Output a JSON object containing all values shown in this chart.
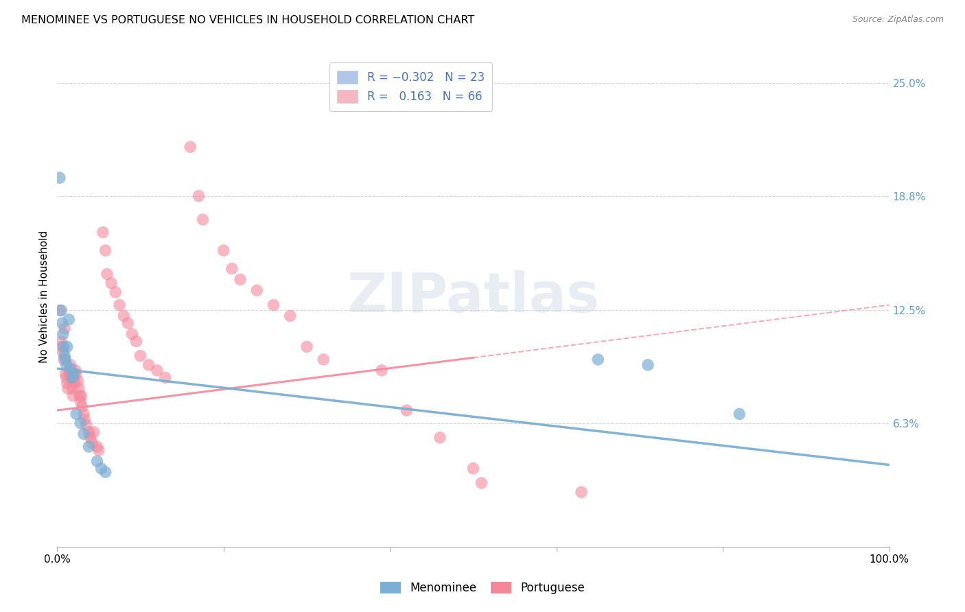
{
  "title": "MENOMINEE VS PORTUGUESE NO VEHICLES IN HOUSEHOLD CORRELATION CHART",
  "source": "Source: ZipAtlas.com",
  "ylabel": "No Vehicles in Household",
  "yticks": [
    "6.3%",
    "12.5%",
    "18.8%",
    "25.0%"
  ],
  "ytick_vals": [
    0.063,
    0.125,
    0.188,
    0.25
  ],
  "xlim": [
    0.0,
    1.0
  ],
  "ylim": [
    -0.005,
    0.27
  ],
  "menominee_color": "#7bafd4",
  "portuguese_color": "#f4879a",
  "menominee_edge": "#5a9bc4",
  "portuguese_edge": "#e8607a",
  "watermark_text": "ZIPatlas",
  "legend_patch_blue": "#aec6e8",
  "legend_patch_pink": "#f4b8c1",
  "legend_text_color": "#4472c4",
  "ytick_color": "#5b9bd5",
  "title_fontsize": 11.5,
  "menominee_points": [
    [
      0.003,
      0.198
    ],
    [
      0.005,
      0.125
    ],
    [
      0.006,
      0.118
    ],
    [
      0.007,
      0.112
    ],
    [
      0.008,
      0.105
    ],
    [
      0.009,
      0.1
    ],
    [
      0.01,
      0.098
    ],
    [
      0.011,
      0.095
    ],
    [
      0.012,
      0.105
    ],
    [
      0.014,
      0.12
    ],
    [
      0.016,
      0.093
    ],
    [
      0.018,
      0.088
    ],
    [
      0.02,
      0.09
    ],
    [
      0.023,
      0.068
    ],
    [
      0.028,
      0.063
    ],
    [
      0.032,
      0.057
    ],
    [
      0.038,
      0.05
    ],
    [
      0.048,
      0.042
    ],
    [
      0.058,
      0.036
    ],
    [
      0.053,
      0.038
    ],
    [
      0.65,
      0.098
    ],
    [
      0.71,
      0.095
    ],
    [
      0.82,
      0.068
    ]
  ],
  "portuguese_points": [
    [
      0.003,
      0.125
    ],
    [
      0.005,
      0.108
    ],
    [
      0.006,
      0.105
    ],
    [
      0.007,
      0.102
    ],
    [
      0.008,
      0.098
    ],
    [
      0.009,
      0.115
    ],
    [
      0.01,
      0.09
    ],
    [
      0.011,
      0.088
    ],
    [
      0.012,
      0.085
    ],
    [
      0.013,
      0.082
    ],
    [
      0.014,
      0.092
    ],
    [
      0.015,
      0.09
    ],
    [
      0.016,
      0.095
    ],
    [
      0.017,
      0.088
    ],
    [
      0.018,
      0.082
    ],
    [
      0.019,
      0.078
    ],
    [
      0.02,
      0.088
    ],
    [
      0.021,
      0.085
    ],
    [
      0.022,
      0.092
    ],
    [
      0.023,
      0.09
    ],
    [
      0.025,
      0.086
    ],
    [
      0.026,
      0.082
    ],
    [
      0.027,
      0.078
    ],
    [
      0.028,
      0.075
    ],
    [
      0.029,
      0.078
    ],
    [
      0.03,
      0.072
    ],
    [
      0.032,
      0.068
    ],
    [
      0.033,
      0.065
    ],
    [
      0.035,
      0.062
    ],
    [
      0.038,
      0.058
    ],
    [
      0.04,
      0.055
    ],
    [
      0.042,
      0.052
    ],
    [
      0.044,
      0.058
    ],
    [
      0.048,
      0.05
    ],
    [
      0.05,
      0.048
    ],
    [
      0.055,
      0.168
    ],
    [
      0.058,
      0.158
    ],
    [
      0.06,
      0.145
    ],
    [
      0.065,
      0.14
    ],
    [
      0.07,
      0.135
    ],
    [
      0.075,
      0.128
    ],
    [
      0.08,
      0.122
    ],
    [
      0.085,
      0.118
    ],
    [
      0.09,
      0.112
    ],
    [
      0.095,
      0.108
    ],
    [
      0.1,
      0.1
    ],
    [
      0.11,
      0.095
    ],
    [
      0.12,
      0.092
    ],
    [
      0.13,
      0.088
    ],
    [
      0.16,
      0.215
    ],
    [
      0.17,
      0.188
    ],
    [
      0.175,
      0.175
    ],
    [
      0.2,
      0.158
    ],
    [
      0.21,
      0.148
    ],
    [
      0.22,
      0.142
    ],
    [
      0.24,
      0.136
    ],
    [
      0.26,
      0.128
    ],
    [
      0.28,
      0.122
    ],
    [
      0.3,
      0.105
    ],
    [
      0.32,
      0.098
    ],
    [
      0.39,
      0.092
    ],
    [
      0.42,
      0.07
    ],
    [
      0.46,
      0.055
    ],
    [
      0.5,
      0.038
    ],
    [
      0.51,
      0.03
    ],
    [
      0.63,
      0.025
    ]
  ],
  "men_trend_x": [
    0.0,
    1.0
  ],
  "men_trend_y": [
    0.093,
    0.04
  ],
  "port_trend_x": [
    0.0,
    1.0
  ],
  "port_trend_y": [
    0.07,
    0.128
  ]
}
